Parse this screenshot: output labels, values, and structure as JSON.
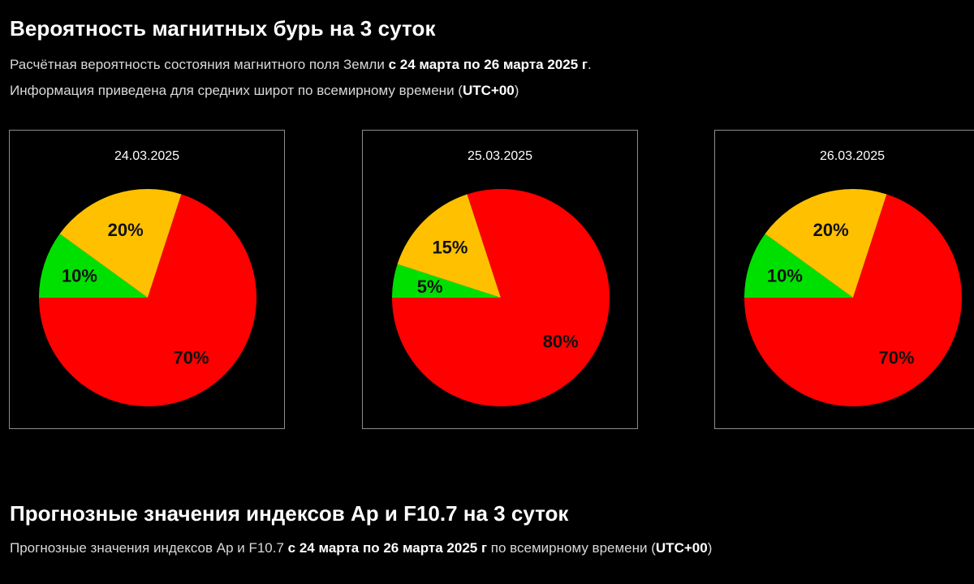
{
  "section1": {
    "title": "Вероятность магнитных бурь на 3 суток",
    "line1_prefix": "Расчётная вероятность состояния магнитного поля Земли ",
    "line1_bold": "с 24 марта по 26 марта 2025 г",
    "line1_suffix": ".",
    "line2_prefix": "Информация приведена для средних широт по всемирному времени (",
    "line2_bold": "UTC+00",
    "line2_suffix": ")"
  },
  "colors": {
    "green": "#00e000",
    "yellow": "#ffc000",
    "red": "#ff0000"
  },
  "chart_data": [
    {
      "type": "pie",
      "title": "24.03.2025",
      "slices": [
        {
          "label": "10%",
          "value": 10,
          "color": "#00e000"
        },
        {
          "label": "20%",
          "value": 20,
          "color": "#ffc000"
        },
        {
          "label": "70%",
          "value": 70,
          "color": "#ff0000"
        }
      ]
    },
    {
      "type": "pie",
      "title": "25.03.2025",
      "slices": [
        {
          "label": "5%",
          "value": 5,
          "color": "#00e000"
        },
        {
          "label": "15%",
          "value": 15,
          "color": "#ffc000"
        },
        {
          "label": "80%",
          "value": 80,
          "color": "#ff0000"
        }
      ]
    },
    {
      "type": "pie",
      "title": "26.03.2025",
      "slices": [
        {
          "label": "10%",
          "value": 10,
          "color": "#00e000"
        },
        {
          "label": "20%",
          "value": 20,
          "color": "#ffc000"
        },
        {
          "label": "70%",
          "value": 70,
          "color": "#ff0000"
        }
      ]
    }
  ],
  "section2": {
    "title": "Прогнозные значения индексов Ap и F10.7 на 3 суток",
    "line_prefix": "Прогнозные значения индексов Ap и F10.7 ",
    "line_bold": "с 24 марта по 26 марта 2025 г",
    "line_suffix": " по всемирному времени (",
    "line_bold2": "UTC+00",
    "line_suffix2": ")"
  }
}
